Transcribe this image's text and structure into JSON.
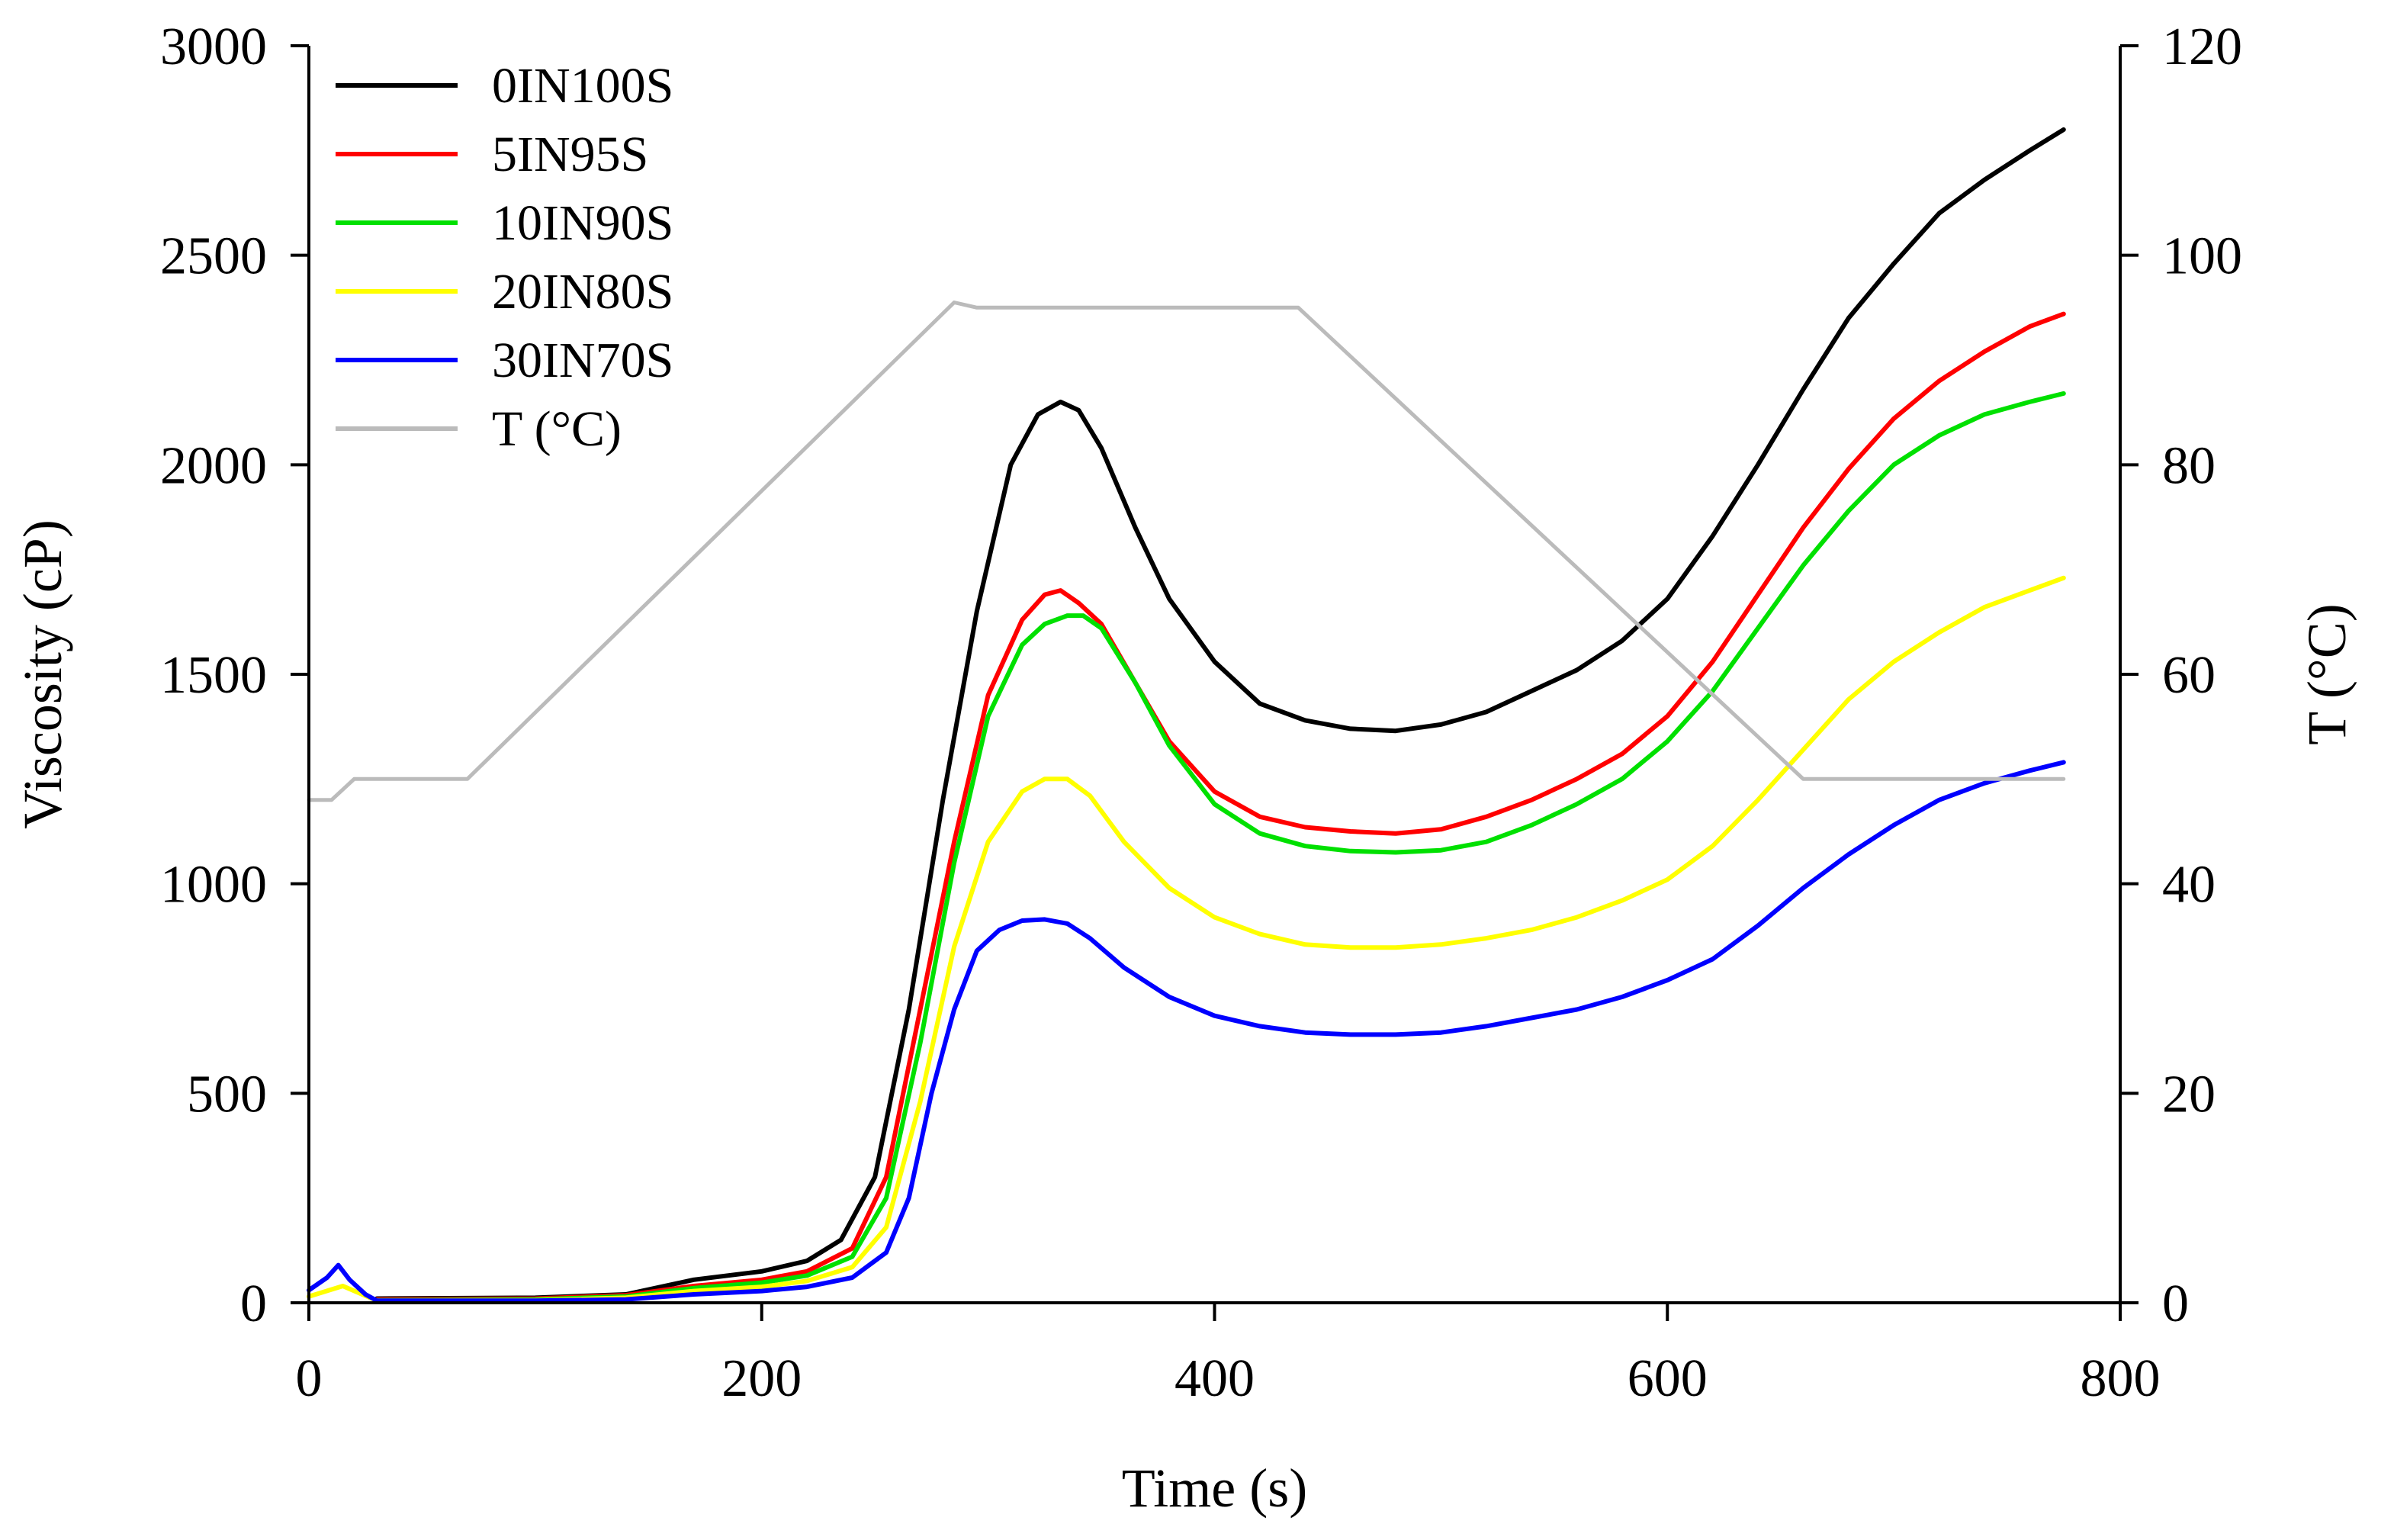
{
  "chart_data": {
    "type": "line",
    "title": "",
    "xlabel": "Time (s)",
    "ylabel": "Viscosity (cP)",
    "y2label": "T (°C)",
    "xlim": [
      0,
      800
    ],
    "ylim": [
      0,
      3000
    ],
    "y2lim": [
      0,
      120
    ],
    "xticks": [
      0,
      200,
      400,
      600,
      800
    ],
    "yticks": [
      0,
      500,
      1000,
      1500,
      2000,
      2500,
      3000
    ],
    "y2ticks": [
      0,
      20,
      40,
      60,
      80,
      100,
      120
    ],
    "legend_position": "top-left",
    "grid": false,
    "series": [
      {
        "name": "0IN100S",
        "color": "#000000",
        "axis": "left",
        "x": [
          30,
          100,
          140,
          170,
          200,
          220,
          235,
          250,
          265,
          280,
          295,
          310,
          322,
          332,
          340,
          350,
          365,
          380,
          400,
          420,
          440,
          460,
          480,
          500,
          520,
          540,
          560,
          580,
          600,
          620,
          640,
          660,
          680,
          700,
          720,
          740,
          760,
          775
        ],
        "y": [
          10,
          12,
          20,
          55,
          75,
          100,
          150,
          300,
          700,
          1200,
          1650,
          2000,
          2120,
          2150,
          2130,
          2040,
          1850,
          1680,
          1530,
          1430,
          1390,
          1370,
          1365,
          1380,
          1410,
          1460,
          1510,
          1580,
          1680,
          1830,
          2000,
          2180,
          2350,
          2480,
          2600,
          2680,
          2750,
          2800
        ]
      },
      {
        "name": "5IN95S",
        "color": "#ff0000",
        "axis": "left",
        "x": [
          30,
          100,
          140,
          170,
          200,
          220,
          240,
          255,
          270,
          285,
          300,
          315,
          325,
          332,
          340,
          350,
          365,
          380,
          400,
          420,
          440,
          460,
          480,
          500,
          520,
          540,
          560,
          580,
          600,
          620,
          640,
          660,
          680,
          700,
          720,
          740,
          760,
          775
        ],
        "y": [
          8,
          10,
          18,
          40,
          55,
          75,
          130,
          300,
          700,
          1100,
          1450,
          1630,
          1690,
          1700,
          1670,
          1620,
          1480,
          1340,
          1220,
          1160,
          1135,
          1125,
          1120,
          1130,
          1160,
          1200,
          1250,
          1310,
          1400,
          1530,
          1690,
          1850,
          1990,
          2110,
          2200,
          2270,
          2330,
          2360
        ]
      },
      {
        "name": "10IN90S",
        "color": "#00e000",
        "axis": "left",
        "x": [
          30,
          100,
          140,
          170,
          200,
          220,
          240,
          255,
          270,
          285,
          300,
          315,
          325,
          335,
          342,
          350,
          365,
          380,
          400,
          420,
          440,
          460,
          480,
          500,
          520,
          540,
          560,
          580,
          600,
          620,
          640,
          660,
          680,
          700,
          720,
          740,
          760,
          775
        ],
        "y": [
          6,
          8,
          15,
          35,
          48,
          65,
          110,
          250,
          620,
          1050,
          1400,
          1570,
          1620,
          1640,
          1640,
          1610,
          1480,
          1330,
          1190,
          1120,
          1090,
          1078,
          1075,
          1080,
          1100,
          1140,
          1190,
          1250,
          1340,
          1460,
          1610,
          1760,
          1890,
          2000,
          2070,
          2120,
          2150,
          2170
        ]
      },
      {
        "name": "20IN80S",
        "color": "#ffff00",
        "axis": "left",
        "x": [
          0,
          15,
          30,
          100,
          140,
          170,
          200,
          220,
          240,
          255,
          270,
          285,
          300,
          315,
          325,
          335,
          345,
          360,
          380,
          400,
          420,
          440,
          460,
          480,
          500,
          520,
          540,
          560,
          580,
          600,
          620,
          640,
          660,
          680,
          700,
          720,
          740,
          760,
          775
        ],
        "y": [
          15,
          40,
          5,
          6,
          12,
          28,
          38,
          52,
          85,
          180,
          480,
          850,
          1100,
          1220,
          1250,
          1250,
          1210,
          1100,
          990,
          920,
          880,
          855,
          848,
          848,
          855,
          870,
          890,
          920,
          960,
          1010,
          1090,
          1200,
          1320,
          1440,
          1530,
          1600,
          1660,
          1700,
          1730
        ]
      },
      {
        "name": "30IN70S",
        "color": "#0000ff",
        "axis": "left",
        "x": [
          0,
          8,
          13,
          18,
          25,
          30,
          100,
          140,
          170,
          200,
          220,
          240,
          255,
          265,
          275,
          285,
          295,
          305,
          315,
          325,
          335,
          345,
          360,
          380,
          400,
          420,
          440,
          460,
          480,
          500,
          520,
          540,
          560,
          580,
          600,
          620,
          640,
          660,
          680,
          700,
          720,
          740,
          760,
          775
        ],
        "y": [
          30,
          60,
          90,
          55,
          20,
          5,
          5,
          8,
          20,
          28,
          38,
          60,
          120,
          250,
          500,
          700,
          840,
          890,
          912,
          915,
          905,
          870,
          800,
          730,
          685,
          660,
          645,
          640,
          640,
          645,
          660,
          680,
          700,
          730,
          770,
          820,
          900,
          990,
          1070,
          1140,
          1200,
          1240,
          1270,
          1290
        ]
      },
      {
        "name": "T (°C)",
        "color": "#bbbbbb",
        "axis": "right",
        "x": [
          0,
          10,
          20,
          70,
          285,
          295,
          437,
          660,
          775
        ],
        "y": [
          48,
          48,
          50,
          50,
          95.5,
          95,
          95,
          50,
          50
        ]
      }
    ]
  }
}
